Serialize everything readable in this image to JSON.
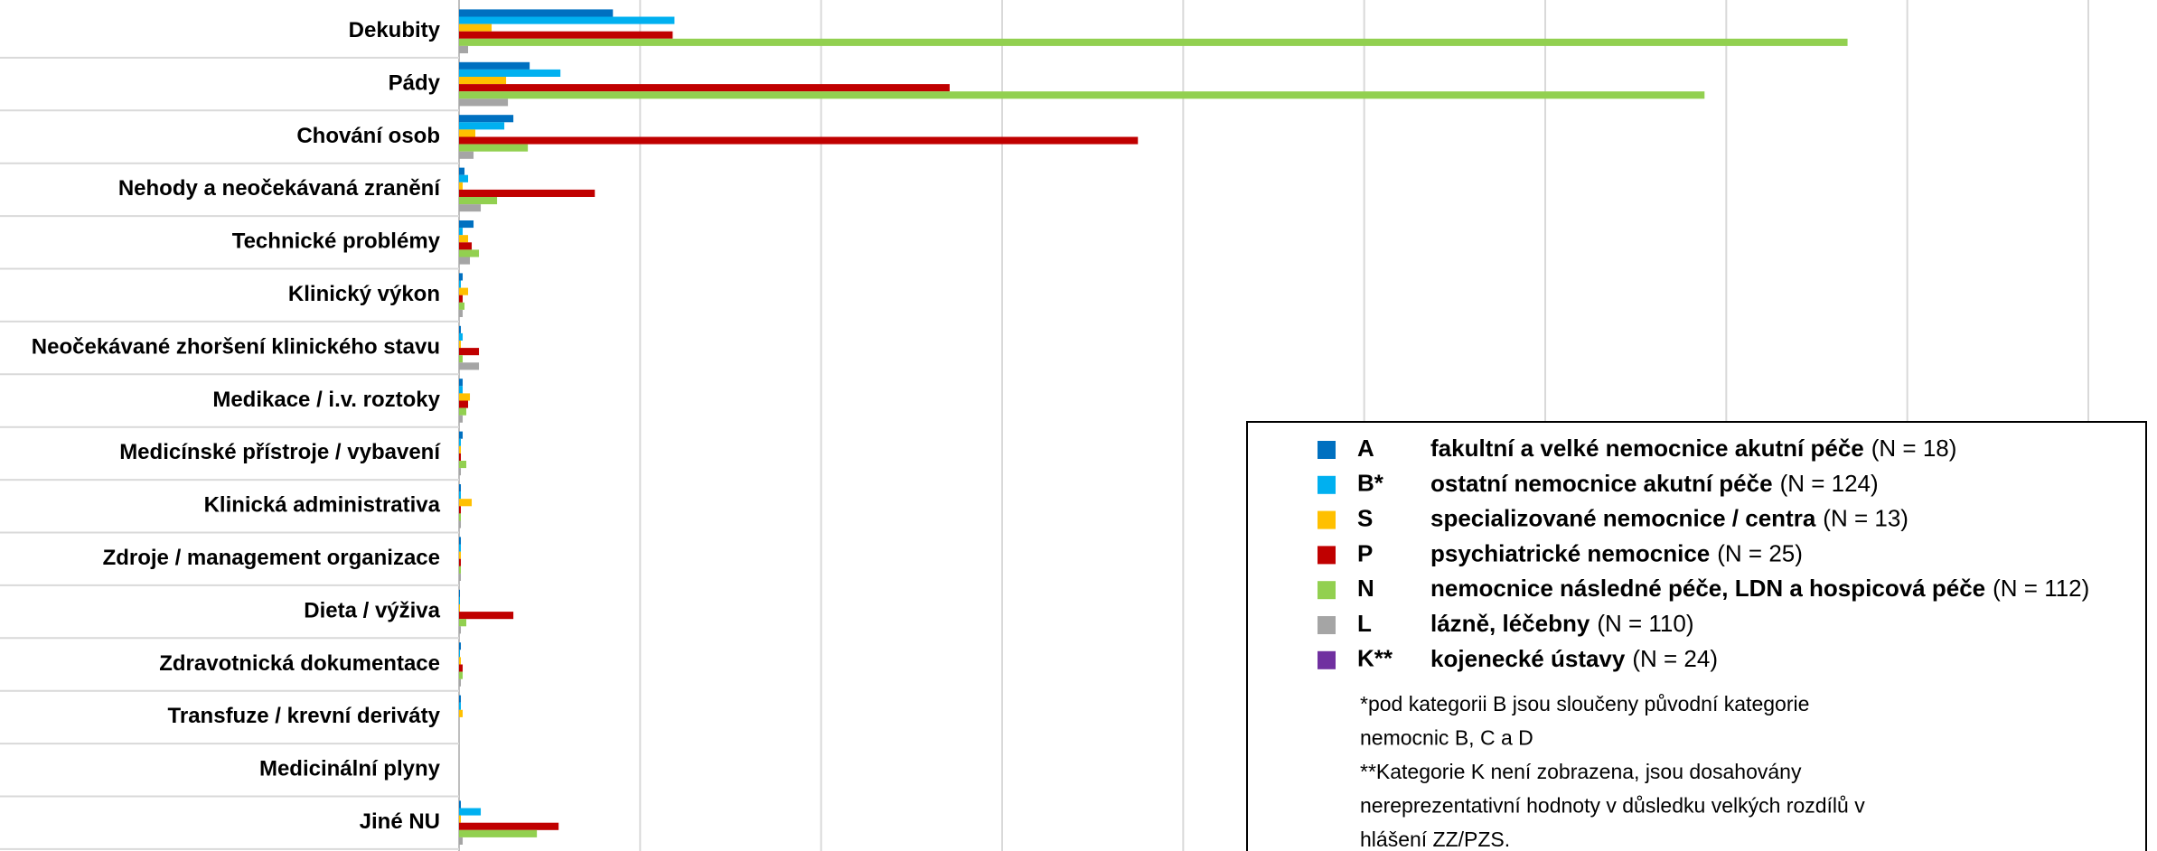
{
  "chart_data": {
    "type": "bar",
    "orientation": "horizontal",
    "categories": [
      "Dekubity",
      "Pády",
      "Chování osob",
      "Nehody a neočekávaná zranění",
      "Technické problémy",
      "Klinický výkon",
      "Neočekávané zhoršení klinického stavu",
      "Medikace / i.v. roztoky",
      "Medicínské přístroje / vybavení",
      "Klinická administrativa",
      "Zdroje / management organizace",
      "Dieta / výživa",
      "Zdravotnická dokumentace",
      "Transfuze / krevní deriváty",
      "Medicinální plyny",
      "Jiné NU"
    ],
    "series": [
      {
        "name": "A",
        "description": "fakultní a velké nemocnice akutní péče",
        "n": "(N = 18)",
        "color": "#0070c0",
        "values": [
          0.85,
          0.39,
          0.3,
          0.03,
          0.08,
          0.02,
          0.01,
          0.02,
          0.02,
          0.01,
          0.01,
          0.005,
          0.01,
          0.01,
          0,
          0.01
        ]
      },
      {
        "name": "B*",
        "description": "ostatní nemocnice akutní péče",
        "n": "(N = 124)",
        "color": "#00b0f0",
        "values": [
          1.19,
          0.56,
          0.25,
          0.05,
          0.02,
          0.01,
          0.02,
          0.02,
          0.01,
          0.01,
          0.01,
          0.005,
          0.005,
          0.01,
          0,
          0.12
        ]
      },
      {
        "name": "S",
        "description": "specializované nemocnice / centra",
        "n": "(N = 13)",
        "color": "#ffc000",
        "values": [
          0.18,
          0.26,
          0.09,
          0.02,
          0.05,
          0.05,
          0.01,
          0.06,
          0.01,
          0.07,
          0.01,
          0.005,
          0.01,
          0.02,
          0,
          0.01
        ]
      },
      {
        "name": "P",
        "description": "psychiatrické nemocnice",
        "n": "(N = 25)",
        "color": "#c00000",
        "values": [
          1.18,
          2.71,
          3.75,
          0.75,
          0.07,
          0.02,
          0.11,
          0.05,
          0.01,
          0.01,
          0.01,
          0.3,
          0.02,
          0,
          0,
          0.55
        ]
      },
      {
        "name": "N",
        "description": "nemocnice následné péče, LDN a hospicová péče",
        "n": "(N = 112)",
        "color": "#92d050",
        "values": [
          7.67,
          6.88,
          0.38,
          0.21,
          0.11,
          0.03,
          0.02,
          0.04,
          0.04,
          0.01,
          0.01,
          0.04,
          0.02,
          0,
          0,
          0.43
        ]
      },
      {
        "name": "L",
        "description": "lázně, léčebny",
        "n": "(N = 110)",
        "color": "#a5a5a5",
        "values": [
          0.05,
          0.27,
          0.08,
          0.12,
          0.06,
          0.02,
          0.11,
          0.02,
          0.01,
          0.01,
          0.01,
          0.01,
          0.01,
          0,
          0,
          0.02
        ]
      },
      {
        "name": "K**",
        "description": "kojenecké ústavy",
        "n": "(N = 24)",
        "color": "#7030a0",
        "values": [
          null,
          null,
          null,
          null,
          null,
          null,
          null,
          null,
          null,
          null,
          null,
          null,
          null,
          null,
          null,
          null
        ]
      }
    ],
    "xlim": [
      0,
      9
    ],
    "xticks": [
      0,
      1,
      2,
      3,
      4,
      5,
      6,
      7,
      8,
      9
    ],
    "grid": true,
    "notes": [
      "*pod kategorii B jsou sloučeny původní kategorie",
      "nemocnic B, C a D",
      "**Kategorie K není zobrazena, jsou dosahovány",
      "nereprezentativní hodnoty v důsledku velkých rozdílů v",
      "hlášení ZZ/PZS."
    ]
  }
}
